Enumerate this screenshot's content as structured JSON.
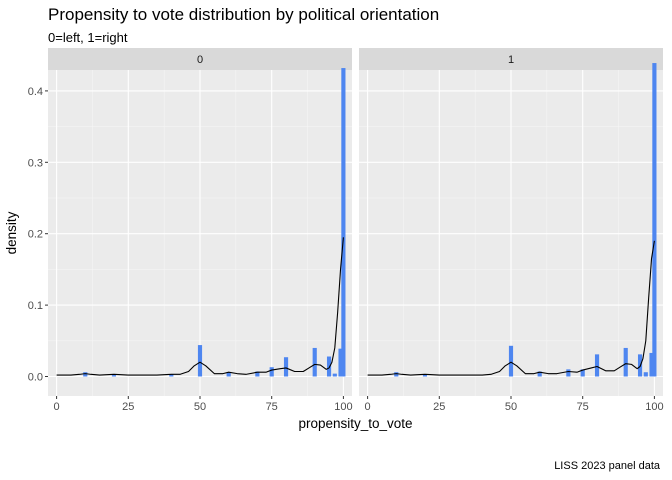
{
  "chart_data": {
    "type": "histogram-density-facet",
    "title": "Propensity to vote distribution by political orientation",
    "subtitle": "0=left, 1=right",
    "caption": "LISS 2023 panel data",
    "xlabel": "propensity_to_vote",
    "ylabel": "density",
    "xlim": [
      0,
      100
    ],
    "ylim": [
      0,
      0.45
    ],
    "x_ticks": [
      0,
      25,
      50,
      75,
      100
    ],
    "y_ticks": [
      0.0,
      0.1,
      0.2,
      0.3,
      0.4
    ],
    "x_tick_labels": [
      "0",
      "25",
      "50",
      "75",
      "100"
    ],
    "y_tick_labels": [
      "0.0",
      "0.1",
      "0.2",
      "0.3",
      "0.4"
    ],
    "bar_color": "#4e86f0",
    "line_color": "#000000",
    "bin_width": 1.45,
    "facets": [
      {
        "label": "0",
        "bars": [
          {
            "x": 10,
            "y": 0.006
          },
          {
            "x": 20,
            "y": 0.002
          },
          {
            "x": 40,
            "y": 0.003
          },
          {
            "x": 50,
            "y": 0.044
          },
          {
            "x": 60,
            "y": 0.006
          },
          {
            "x": 70,
            "y": 0.007
          },
          {
            "x": 75,
            "y": 0.013
          },
          {
            "x": 80,
            "y": 0.027
          },
          {
            "x": 90,
            "y": 0.04
          },
          {
            "x": 95,
            "y": 0.028
          },
          {
            "x": 97,
            "y": 0.004
          },
          {
            "x": 99,
            "y": 0.039
          },
          {
            "x": 100,
            "y": 0.432
          }
        ],
        "density": [
          [
            0,
            0.002
          ],
          [
            5,
            0.002
          ],
          [
            8,
            0.003
          ],
          [
            10,
            0.004
          ],
          [
            12,
            0.003
          ],
          [
            15,
            0.002
          ],
          [
            20,
            0.003
          ],
          [
            25,
            0.002
          ],
          [
            30,
            0.002
          ],
          [
            35,
            0.002
          ],
          [
            40,
            0.003
          ],
          [
            43,
            0.003
          ],
          [
            46,
            0.007
          ],
          [
            48,
            0.015
          ],
          [
            50,
            0.02
          ],
          [
            52,
            0.015
          ],
          [
            55,
            0.004
          ],
          [
            58,
            0.004
          ],
          [
            60,
            0.006
          ],
          [
            63,
            0.004
          ],
          [
            66,
            0.003
          ],
          [
            70,
            0.006
          ],
          [
            73,
            0.006
          ],
          [
            75,
            0.009
          ],
          [
            78,
            0.011
          ],
          [
            80,
            0.012
          ],
          [
            83,
            0.007
          ],
          [
            86,
            0.007
          ],
          [
            88,
            0.012
          ],
          [
            90,
            0.017
          ],
          [
            92,
            0.016
          ],
          [
            94,
            0.01
          ],
          [
            95,
            0.012
          ],
          [
            96,
            0.02
          ],
          [
            97,
            0.04
          ],
          [
            98,
            0.09
          ],
          [
            99,
            0.15
          ],
          [
            100,
            0.195
          ]
        ]
      },
      {
        "label": "1",
        "bars": [
          {
            "x": 10,
            "y": 0.006
          },
          {
            "x": 20,
            "y": 0.003
          },
          {
            "x": 50,
            "y": 0.043
          },
          {
            "x": 60,
            "y": 0.007
          },
          {
            "x": 70,
            "y": 0.01
          },
          {
            "x": 75,
            "y": 0.01
          },
          {
            "x": 80,
            "y": 0.031
          },
          {
            "x": 90,
            "y": 0.04
          },
          {
            "x": 95,
            "y": 0.031
          },
          {
            "x": 97,
            "y": 0.006
          },
          {
            "x": 99,
            "y": 0.033
          },
          {
            "x": 100,
            "y": 0.439
          }
        ],
        "density": [
          [
            0,
            0.002
          ],
          [
            5,
            0.002
          ],
          [
            8,
            0.003
          ],
          [
            10,
            0.004
          ],
          [
            12,
            0.003
          ],
          [
            15,
            0.002
          ],
          [
            20,
            0.003
          ],
          [
            25,
            0.002
          ],
          [
            30,
            0.002
          ],
          [
            35,
            0.002
          ],
          [
            40,
            0.002
          ],
          [
            43,
            0.003
          ],
          [
            46,
            0.007
          ],
          [
            48,
            0.015
          ],
          [
            50,
            0.02
          ],
          [
            52,
            0.015
          ],
          [
            55,
            0.004
          ],
          [
            58,
            0.004
          ],
          [
            60,
            0.006
          ],
          [
            63,
            0.004
          ],
          [
            66,
            0.004
          ],
          [
            70,
            0.007
          ],
          [
            73,
            0.006
          ],
          [
            75,
            0.009
          ],
          [
            78,
            0.012
          ],
          [
            80,
            0.014
          ],
          [
            83,
            0.008
          ],
          [
            86,
            0.008
          ],
          [
            88,
            0.013
          ],
          [
            90,
            0.018
          ],
          [
            92,
            0.017
          ],
          [
            94,
            0.011
          ],
          [
            95,
            0.014
          ],
          [
            96,
            0.025
          ],
          [
            97,
            0.05
          ],
          [
            98,
            0.11
          ],
          [
            99,
            0.165
          ],
          [
            100,
            0.19
          ]
        ]
      }
    ]
  }
}
